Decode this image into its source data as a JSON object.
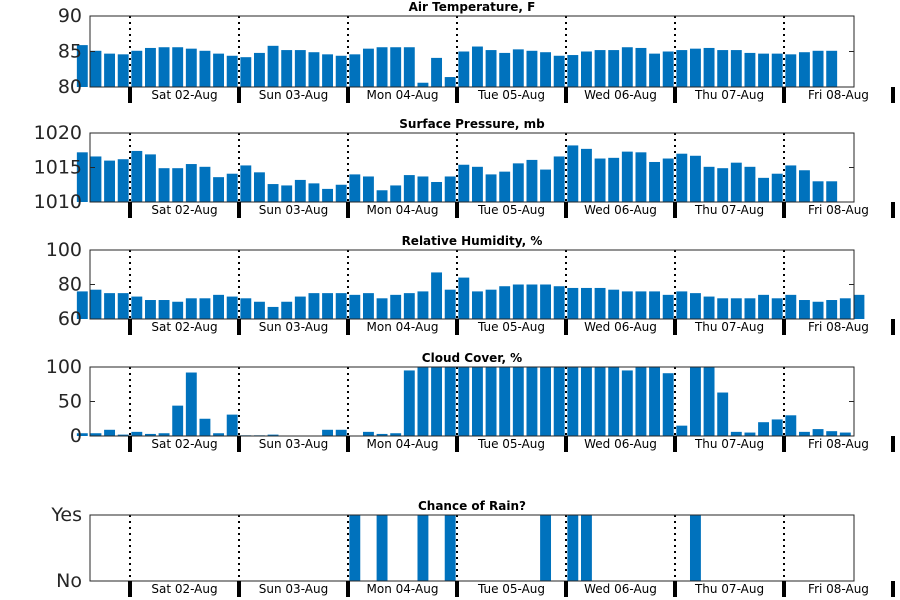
{
  "chart_data": [
    {
      "type": "bar",
      "title": "Air Temperature, F",
      "ylim": [
        80,
        90
      ],
      "yticks": [
        "80",
        "85",
        "90"
      ],
      "color": "#0072bd",
      "x_tick_labels": [
        "Sat 02-Aug",
        "Sun 03-Aug",
        "Mon 04-Aug",
        "Tue 05-Aug",
        "Wed 06-Aug",
        "Thu 07-Aug",
        "Fri 08-Aug"
      ],
      "values": [
        85.9,
        85.1,
        84.7,
        84.6,
        85.1,
        85.5,
        85.6,
        85.6,
        85.4,
        85.1,
        84.7,
        84.4,
        84.2,
        84.8,
        85.8,
        85.2,
        85.2,
        84.9,
        84.6,
        84.4,
        84.6,
        85.4,
        85.6,
        85.6,
        85.6,
        80.6,
        84.1,
        81.4,
        85.0,
        85.7,
        85.2,
        84.8,
        85.3,
        85.1,
        84.9,
        84.4,
        84.5,
        85.0,
        85.2,
        85.2,
        85.6,
        85.5,
        84.7,
        85.0,
        85.2,
        85.4,
        85.5,
        85.2,
        85.2,
        84.8,
        84.7,
        84.7,
        84.6,
        84.9,
        85.1,
        85.1
      ]
    },
    {
      "type": "bar",
      "title": "Surface Pressure, mb",
      "ylim": [
        1010,
        1020
      ],
      "yticks": [
        "1010",
        "1015",
        "1020"
      ],
      "color": "#0072bd",
      "x_tick_labels": [
        "Sat 02-Aug",
        "Sun 03-Aug",
        "Mon 04-Aug",
        "Tue 05-Aug",
        "Wed 06-Aug",
        "Thu 07-Aug",
        "Fri 08-Aug"
      ],
      "values": [
        1017.2,
        1016.6,
        1016.0,
        1016.2,
        1017.4,
        1016.9,
        1014.9,
        1014.9,
        1015.5,
        1015.1,
        1013.6,
        1014.1,
        1015.3,
        1014.3,
        1012.6,
        1012.4,
        1013.2,
        1012.7,
        1011.9,
        1012.5,
        1014.0,
        1013.7,
        1011.7,
        1012.4,
        1013.9,
        1013.7,
        1012.9,
        1013.7,
        1015.4,
        1015.1,
        1014.0,
        1014.4,
        1015.6,
        1016.1,
        1014.7,
        1016.6,
        1018.2,
        1017.7,
        1016.3,
        1016.4,
        1017.3,
        1017.2,
        1015.8,
        1016.3,
        1017.0,
        1016.7,
        1015.1,
        1014.9,
        1015.7,
        1015.1,
        1013.5,
        1014.1,
        1015.3,
        1014.6,
        1013.0,
        1013.0
      ]
    },
    {
      "type": "bar",
      "title": "Relative Humidity, %",
      "ylim": [
        60,
        100
      ],
      "yticks": [
        "60",
        "80",
        "100"
      ],
      "color": "#0072bd",
      "x_tick_labels": [
        "Sat 02-Aug",
        "Sun 03-Aug",
        "Mon 04-Aug",
        "Tue 05-Aug",
        "Wed 06-Aug",
        "Thu 07-Aug",
        "Fri 08-Aug"
      ],
      "values": [
        76,
        77,
        75,
        75,
        73,
        71,
        71,
        70,
        72,
        72,
        74,
        73,
        72,
        70,
        67,
        70,
        73,
        75,
        75,
        75,
        74,
        75,
        72,
        74,
        75,
        76,
        87,
        77,
        84,
        76,
        77,
        79,
        80,
        80,
        80,
        79,
        78,
        78,
        78,
        77,
        76,
        76,
        76,
        74,
        76,
        75,
        73,
        72,
        72,
        72,
        74,
        72,
        74,
        71,
        70,
        71,
        72,
        74
      ]
    },
    {
      "type": "bar",
      "title": "Cloud Cover, %",
      "ylim": [
        0,
        100
      ],
      "yticks": [
        "0",
        "50",
        "100"
      ],
      "color": "#0072bd",
      "x_tick_labels": [
        "Sat 02-Aug",
        "Sun 03-Aug",
        "Mon 04-Aug",
        "Tue 05-Aug",
        "Wed 06-Aug",
        "Thu 07-Aug",
        "Fri 08-Aug"
      ],
      "values": [
        4,
        4,
        9,
        2,
        6,
        3,
        4,
        44,
        92,
        25,
        4,
        31,
        1,
        1,
        2,
        0,
        0,
        0,
        9,
        9,
        0,
        6,
        3,
        4,
        95,
        100,
        100,
        100,
        100,
        100,
        100,
        100,
        100,
        100,
        100,
        100,
        100,
        100,
        100,
        100,
        95,
        100,
        100,
        91,
        15,
        100,
        100,
        63,
        6,
        5,
        20,
        24,
        30,
        6,
        10,
        7,
        5
      ]
    },
    {
      "type": "bar",
      "title": "Chance of Rain?",
      "ylim": [
        0,
        1
      ],
      "yticks": [
        "No",
        "Yes"
      ],
      "color": "#0072bd",
      "x_tick_labels": [
        "Sat 02-Aug",
        "Sun 03-Aug",
        "Mon 04-Aug",
        "Tue 05-Aug",
        "Wed 06-Aug",
        "Thu 07-Aug",
        "Fri 08-Aug"
      ],
      "values": [
        0,
        0,
        0,
        0,
        0,
        0,
        0,
        0,
        0,
        0,
        0,
        0,
        0,
        0,
        0,
        0,
        0,
        0,
        0,
        0,
        1,
        0,
        1,
        0,
        0,
        1,
        0,
        1,
        0,
        0,
        0,
        0,
        0,
        0,
        1,
        0,
        1,
        1,
        0,
        0,
        0,
        0,
        0,
        0,
        0,
        1,
        0,
        0,
        0,
        0,
        0,
        0,
        0,
        0,
        0,
        0
      ]
    }
  ]
}
